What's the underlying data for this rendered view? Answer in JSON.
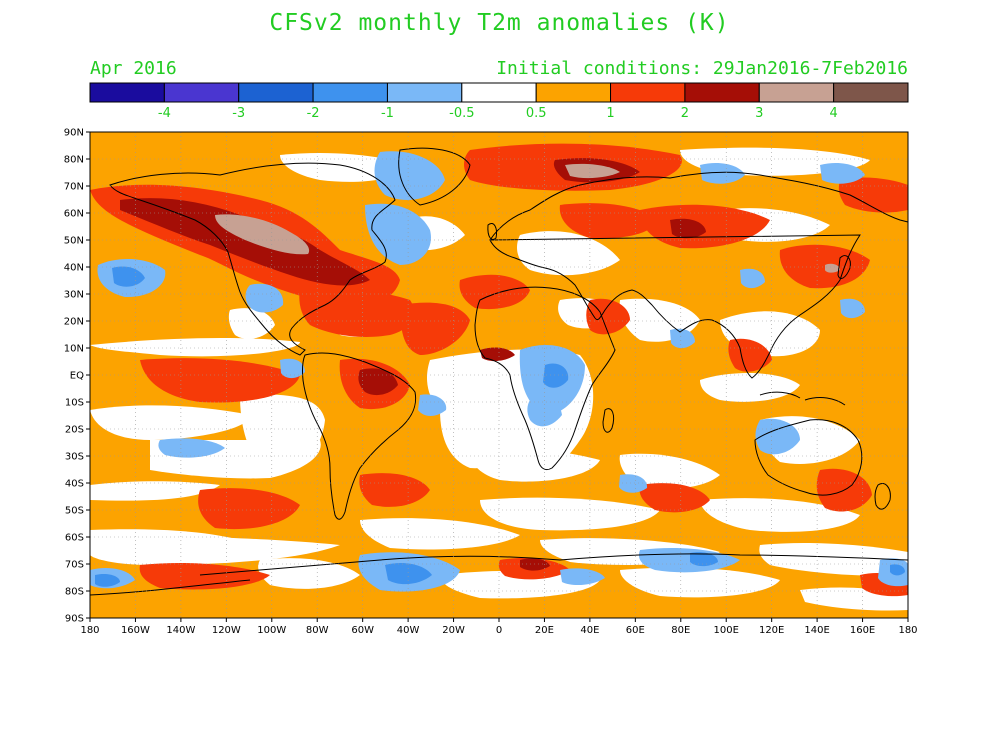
{
  "header": {
    "title": "CFSv2 monthly T2m anomalies (K)",
    "month": "Apr 2016",
    "initial_conditions": "Initial conditions: 29Jan2016-7Feb2016"
  },
  "colorbar": {
    "colors": [
      "#1a0c9e",
      "#4a36d0",
      "#1c62d2",
      "#3e92ee",
      "#7ab8f7",
      "#ffffff",
      "#fca300",
      "#f63a08",
      "#a50e06",
      "#c7a193",
      "#7e564a"
    ],
    "labels": [
      "-4",
      "-3",
      "-2",
      "-1",
      "-0.5",
      "0.5",
      "1",
      "2",
      "3",
      "4"
    ]
  },
  "axes": {
    "lon_labels": [
      "180",
      "160W",
      "140W",
      "120W",
      "100W",
      "80W",
      "60W",
      "40W",
      "20W",
      "0",
      "20E",
      "40E",
      "60E",
      "80E",
      "100E",
      "120E",
      "140E",
      "160E",
      "180"
    ],
    "lat_labels": [
      "90N",
      "80N",
      "70N",
      "60N",
      "50N",
      "40N",
      "30N",
      "20N",
      "10N",
      "EQ",
      "10S",
      "20S",
      "30S",
      "40S",
      "50S",
      "60S",
      "70S",
      "80S",
      "90S"
    ]
  },
  "map_features": {
    "anomaly_palette": {
      "neutral": "#ffffff",
      "warm_05_1": "#fca300",
      "warm_1_2": "#f63a08",
      "warm_2_3": "#a50e06",
      "warm_3_4": "#c7a193",
      "cool_05_1": "#7ab8f7",
      "cool_1_2": "#3e92ee"
    }
  }
}
